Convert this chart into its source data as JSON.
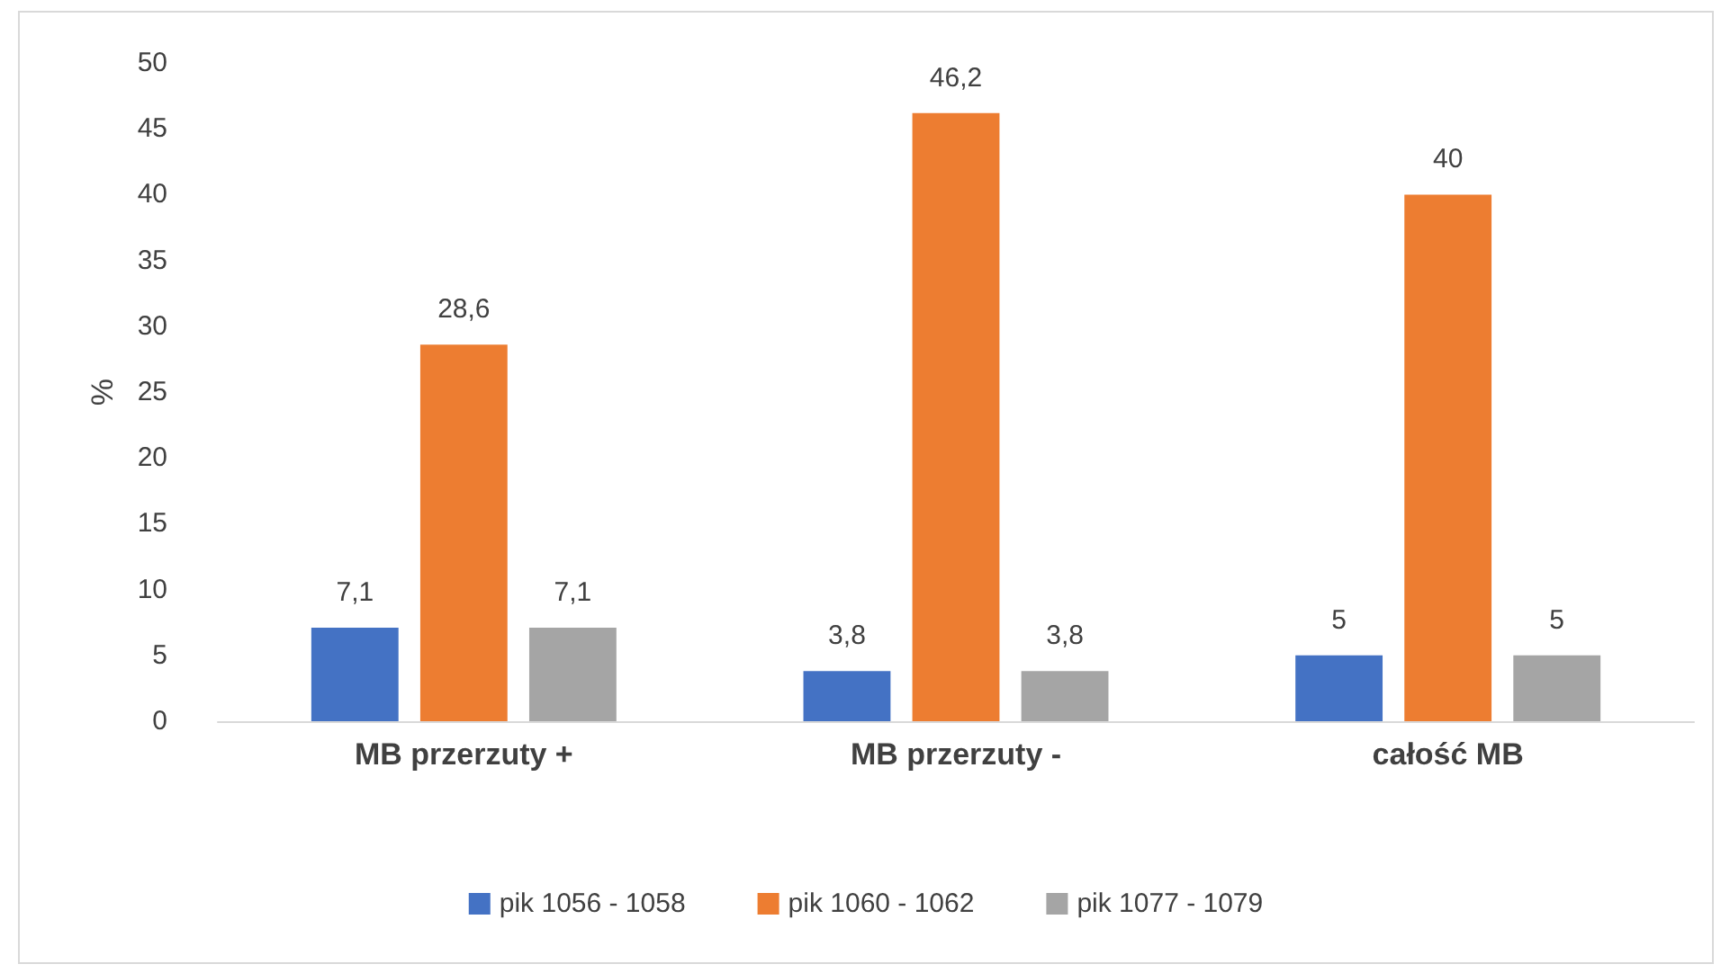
{
  "chart_data": {
    "type": "bar",
    "ylabel": "%",
    "categories": [
      "MB przerzuty +",
      "MB przerzuty -",
      "całość MB"
    ],
    "series": [
      {
        "name": "pik 1056 - 1058",
        "color": "#4472c4",
        "values": [
          7.1,
          3.8,
          5
        ],
        "value_labels": [
          "7,1",
          "3,8",
          "5"
        ]
      },
      {
        "name": "pik 1060 - 1062",
        "color": "#ed7d31",
        "values": [
          28.6,
          46.2,
          40
        ],
        "value_labels": [
          "28,6",
          "46,2",
          "40"
        ]
      },
      {
        "name": "pik 1077 - 1079",
        "color": "#a5a5a5",
        "values": [
          7.1,
          3.8,
          5
        ],
        "value_labels": [
          "7,1",
          "3,8",
          "5"
        ]
      }
    ],
    "ylim": [
      0,
      50
    ],
    "yticks": [
      0,
      5,
      10,
      15,
      20,
      25,
      30,
      35,
      40,
      45,
      50
    ],
    "grid": false,
    "legend": "bottom"
  }
}
